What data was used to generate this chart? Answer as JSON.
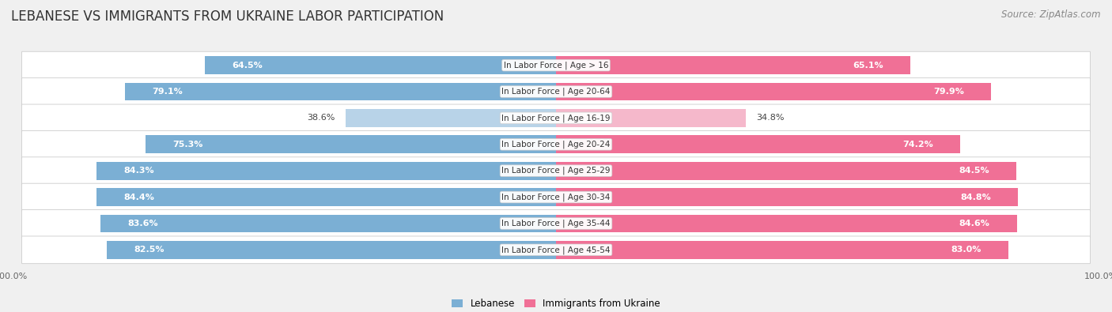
{
  "title": "LEBANESE VS IMMIGRANTS FROM UKRAINE LABOR PARTICIPATION",
  "source": "Source: ZipAtlas.com",
  "categories": [
    "In Labor Force | Age > 16",
    "In Labor Force | Age 20-64",
    "In Labor Force | Age 16-19",
    "In Labor Force | Age 20-24",
    "In Labor Force | Age 25-29",
    "In Labor Force | Age 30-34",
    "In Labor Force | Age 35-44",
    "In Labor Force | Age 45-54"
  ],
  "lebanese": [
    64.5,
    79.1,
    38.6,
    75.3,
    84.3,
    84.4,
    83.6,
    82.5
  ],
  "ukraine": [
    65.1,
    79.9,
    34.8,
    74.2,
    84.5,
    84.8,
    84.6,
    83.0
  ],
  "lebanese_color": "#7bafd4",
  "lebanese_color_light": "#b8d3e8",
  "ukraine_color": "#f07096",
  "ukraine_color_light": "#f5b8cb",
  "bar_height": 0.68,
  "background_color": "#f0f0f0",
  "row_bg_even": "#ffffff",
  "row_bg_odd": "#f8f8f8",
  "legend_lebanese": "Lebanese",
  "legend_ukraine": "Immigrants from Ukraine",
  "title_fontsize": 12,
  "source_fontsize": 8.5,
  "label_fontsize": 8.0,
  "category_fontsize": 7.5,
  "axis_label_fontsize": 8.0
}
